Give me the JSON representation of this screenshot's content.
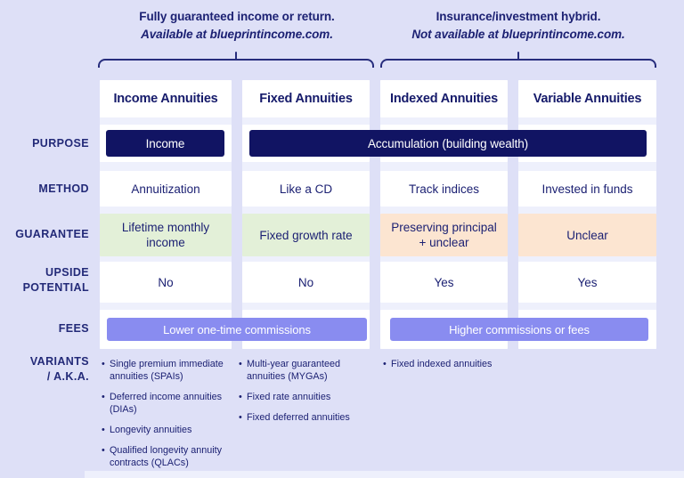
{
  "title": "Annuity types comparison infographic",
  "colors": {
    "page_bg": "#dee0f7",
    "column_band": "#eef0fc",
    "cell_bg": "#ffffff",
    "navy_pill": "#111463",
    "text_navy": "#1c2173",
    "green_cell": "#e3f0d8",
    "peach_cell": "#fce5d1",
    "periwinkle_pill": "#898cf0",
    "bracket": "#272d7d"
  },
  "top_groups": [
    {
      "line1": "Fully guaranteed income or return.",
      "line2": "Available at blueprintincome.com."
    },
    {
      "line1": "Insurance/investment hybrid.",
      "line2": "Not available at blueprintincome.com."
    }
  ],
  "row_labels": {
    "purpose": "PURPOSE",
    "method": "METHOD",
    "guarantee": "GUARANTEE",
    "upside_line1": "UPSIDE",
    "upside_line2": "POTENTIAL",
    "fees": "FEES",
    "variants_line1": "VARIANTS",
    "variants_line2": "/ A.K.A."
  },
  "purpose_row": {
    "income": "Income",
    "accumulation": "Accumulation (building wealth)"
  },
  "fees_row": {
    "left_pill": "Lower one-time commissions",
    "right_pill": "Higher commissions or fees"
  },
  "columns": [
    {
      "title": "Income Annuities",
      "method": "Annuitization",
      "guarantee": "Lifetime monthly income",
      "guarantee_tint": "green",
      "upside": "No",
      "variants": [
        "Single premium immediate annuities (SPAIs)",
        "Deferred income annuities (DIAs)",
        "Longevity annuities",
        "Qualified longevity annuity contracts (QLACs)"
      ]
    },
    {
      "title": "Fixed Annuities",
      "method": "Like a CD",
      "guarantee": "Fixed growth rate",
      "guarantee_tint": "green",
      "upside": "No",
      "variants": [
        "Multi-year guaranteed annuities (MYGAs)",
        "Fixed rate annuities",
        "Fixed deferred annuities"
      ]
    },
    {
      "title": "Indexed Annuities",
      "method": "Track indices",
      "guarantee": "Preserving principal + unclear",
      "guarantee_tint": "peach",
      "upside": "Yes",
      "variants": [
        "Fixed indexed annuities"
      ]
    },
    {
      "title": "Variable Annuities",
      "method": "Invested in funds",
      "guarantee": "Unclear",
      "guarantee_tint": "peach",
      "upside": "Yes",
      "variants": []
    }
  ]
}
